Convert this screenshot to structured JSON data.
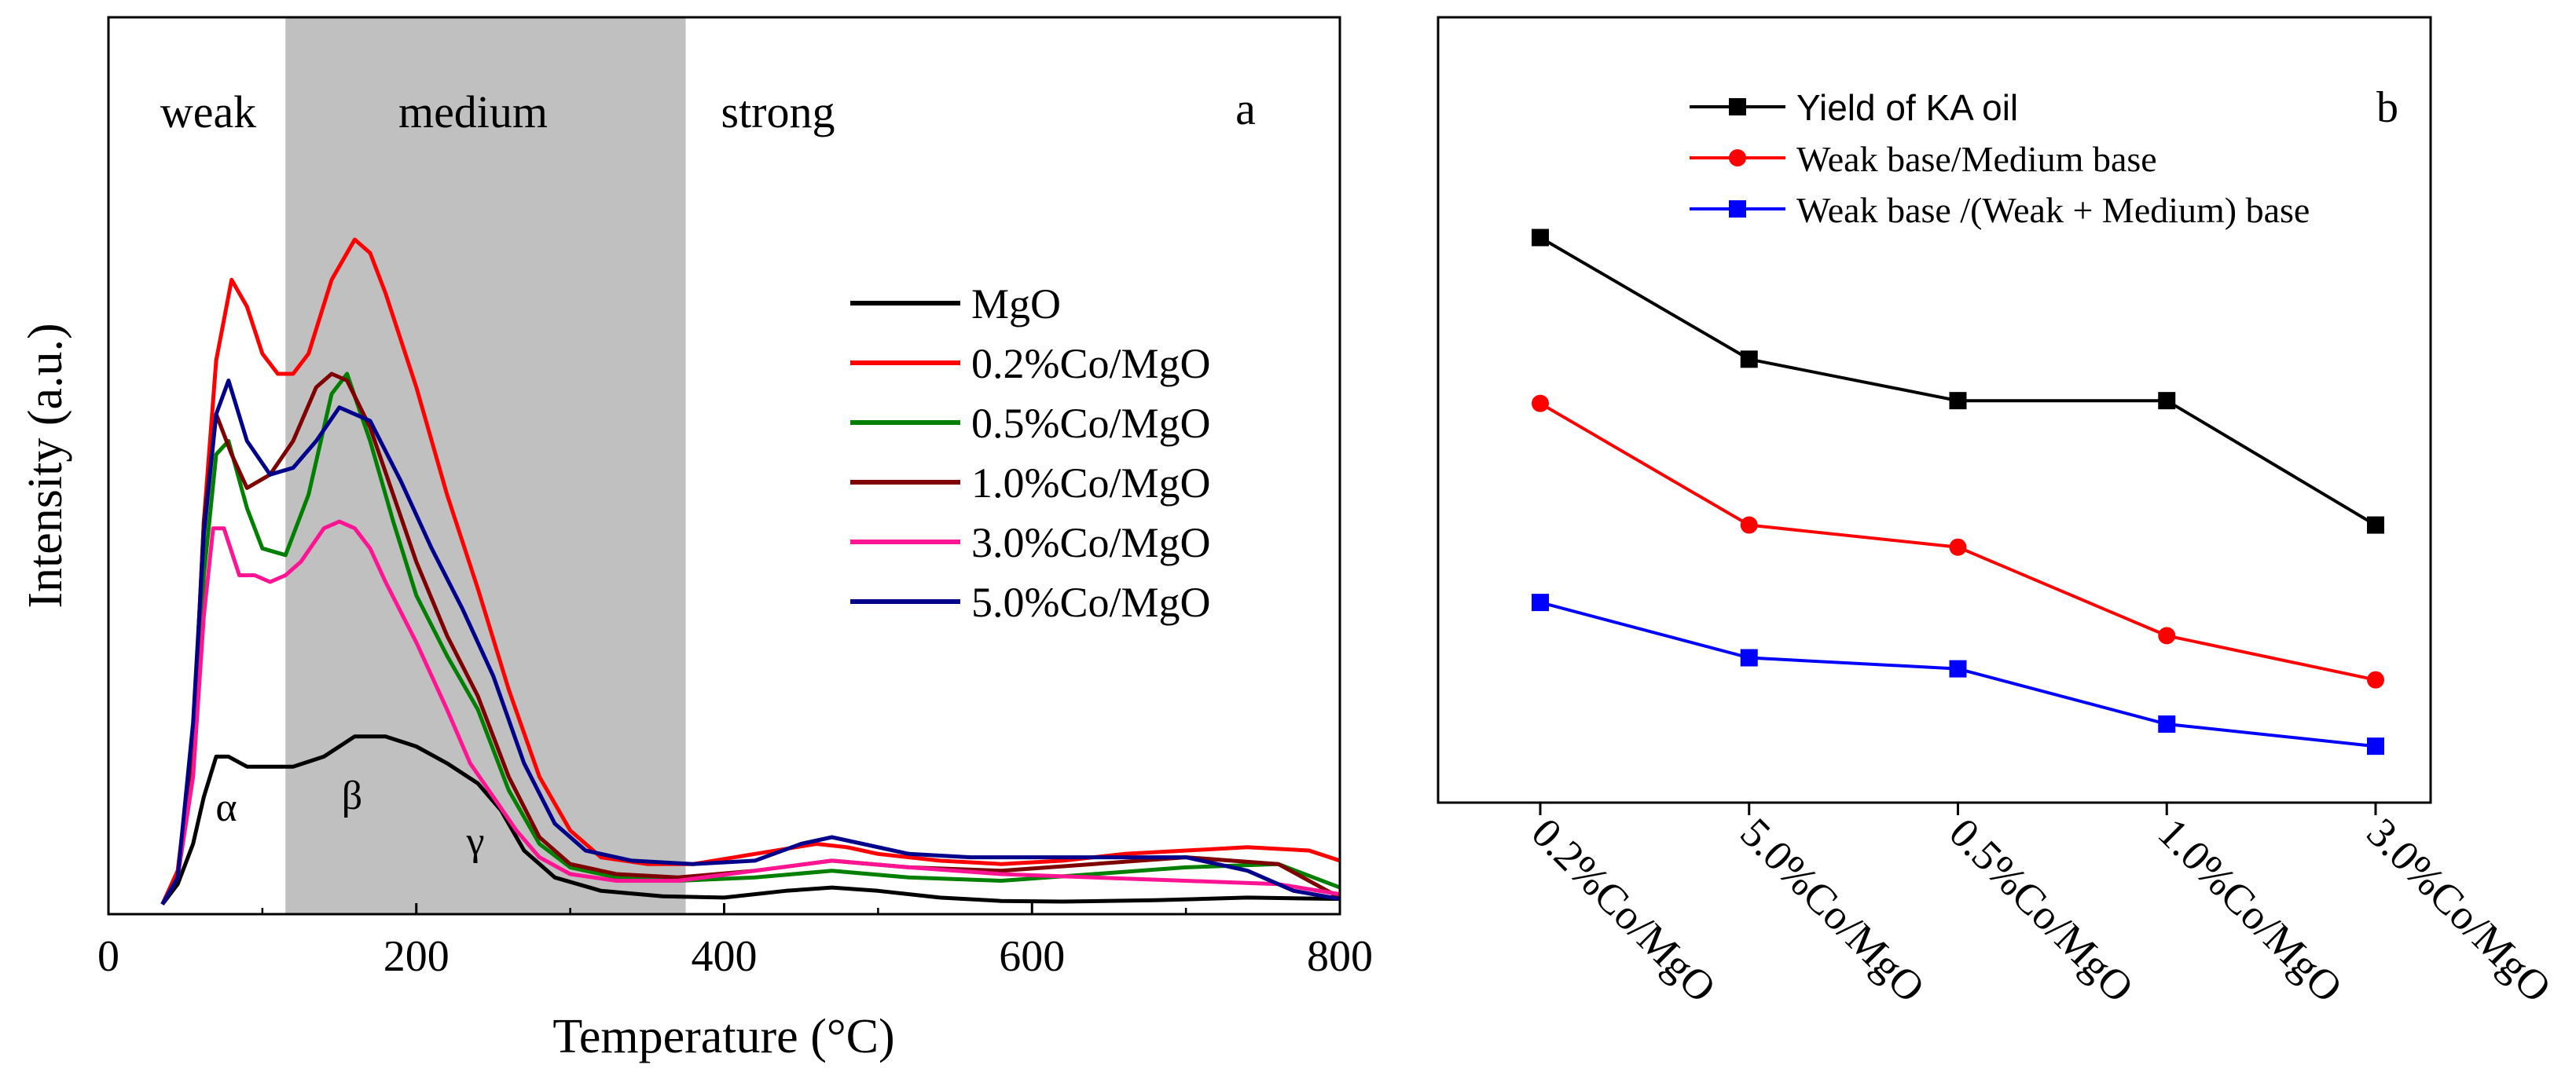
{
  "chart_data": [
    {
      "type": "line",
      "panel_label": "a",
      "title": "",
      "xlabel": "Temperature (°C)",
      "ylabel": "Intensity (a.u.)",
      "xlim": [
        0,
        800
      ],
      "ylim": [
        0,
        1.0
      ],
      "x_ticks": [
        "0",
        "200",
        "400",
        "600",
        "800"
      ],
      "region_labels": [
        "weak",
        "medium",
        "strong"
      ],
      "shaded_region": {
        "from": 115,
        "to": 375,
        "color": "#c0c0c0"
      },
      "peak_labels": [
        {
          "text": "α",
          "x": 78,
          "y": 0.14
        },
        {
          "text": "β",
          "x": 160,
          "y": 0.15
        },
        {
          "text": "γ",
          "x": 240,
          "y": 0.07
        }
      ],
      "legend": {
        "position": "middle-right"
      },
      "series": [
        {
          "name": "MgO",
          "color": "#000000",
          "x": [
            35,
            45,
            55,
            62,
            70,
            78,
            90,
            105,
            120,
            140,
            160,
            180,
            200,
            220,
            240,
            255,
            270,
            290,
            320,
            360,
            400,
            440,
            470,
            500,
            540,
            580,
            620,
            680,
            740,
            800
          ],
          "y": [
            0.01,
            0.04,
            0.1,
            0.17,
            0.23,
            0.23,
            0.215,
            0.215,
            0.215,
            0.23,
            0.26,
            0.26,
            0.245,
            0.22,
            0.19,
            0.15,
            0.09,
            0.05,
            0.03,
            0.022,
            0.02,
            0.03,
            0.035,
            0.03,
            0.02,
            0.015,
            0.014,
            0.016,
            0.02,
            0.018
          ]
        },
        {
          "name": "0.2%Co/MgO",
          "color": "#ff0000",
          "x": [
            35,
            45,
            55,
            62,
            70,
            80,
            90,
            100,
            110,
            120,
            130,
            145,
            160,
            170,
            180,
            200,
            220,
            240,
            260,
            280,
            300,
            320,
            350,
            380,
            420,
            460,
            480,
            500,
            540,
            580,
            620,
            660,
            700,
            740,
            780,
            800
          ],
          "y": [
            0.01,
            0.06,
            0.25,
            0.58,
            0.82,
            0.94,
            0.9,
            0.83,
            0.8,
            0.8,
            0.83,
            0.94,
            1.0,
            0.98,
            0.92,
            0.78,
            0.62,
            0.48,
            0.33,
            0.2,
            0.12,
            0.08,
            0.07,
            0.07,
            0.085,
            0.1,
            0.095,
            0.085,
            0.075,
            0.07,
            0.075,
            0.085,
            0.09,
            0.095,
            0.09,
            0.075
          ]
        },
        {
          "name": "0.5%Co/MgO",
          "color": "#007f00",
          "x": [
            35,
            45,
            55,
            62,
            70,
            78,
            90,
            100,
            115,
            130,
            145,
            155,
            170,
            185,
            200,
            220,
            240,
            260,
            280,
            300,
            330,
            370,
            420,
            470,
            520,
            580,
            640,
            700,
            760,
            800
          ],
          "y": [
            0.01,
            0.05,
            0.22,
            0.5,
            0.68,
            0.7,
            0.6,
            0.54,
            0.53,
            0.62,
            0.77,
            0.8,
            0.7,
            0.58,
            0.47,
            0.38,
            0.3,
            0.18,
            0.1,
            0.065,
            0.05,
            0.045,
            0.05,
            0.06,
            0.05,
            0.045,
            0.055,
            0.065,
            0.07,
            0.035
          ]
        },
        {
          "name": "1.0%Co/MgO",
          "color": "#7f0000",
          "x": [
            35,
            45,
            55,
            62,
            70,
            80,
            90,
            105,
            120,
            135,
            145,
            155,
            170,
            185,
            200,
            220,
            240,
            260,
            280,
            300,
            330,
            370,
            420,
            470,
            520,
            580,
            640,
            700,
            760,
            800
          ],
          "y": [
            0.01,
            0.05,
            0.25,
            0.58,
            0.74,
            0.68,
            0.63,
            0.65,
            0.7,
            0.78,
            0.8,
            0.79,
            0.72,
            0.62,
            0.52,
            0.41,
            0.32,
            0.2,
            0.11,
            0.07,
            0.055,
            0.05,
            0.06,
            0.075,
            0.065,
            0.06,
            0.07,
            0.08,
            0.07,
            0.02
          ]
        },
        {
          "name": "3.0%Co/MgO",
          "color": "#ff1493",
          "x": [
            35,
            45,
            55,
            62,
            68,
            75,
            85,
            95,
            105,
            115,
            125,
            140,
            150,
            160,
            170,
            180,
            200,
            220,
            235,
            250,
            265,
            280,
            300,
            330,
            370,
            420,
            470,
            520,
            580,
            640,
            700,
            760,
            800
          ],
          "y": [
            0.01,
            0.05,
            0.2,
            0.44,
            0.57,
            0.57,
            0.5,
            0.5,
            0.49,
            0.5,
            0.52,
            0.57,
            0.58,
            0.57,
            0.54,
            0.49,
            0.4,
            0.3,
            0.22,
            0.17,
            0.12,
            0.08,
            0.055,
            0.045,
            0.045,
            0.06,
            0.075,
            0.065,
            0.055,
            0.05,
            0.045,
            0.04,
            0.025
          ]
        },
        {
          "name": "5.0%Co/MgO",
          "color": "#00008b",
          "x": [
            35,
            45,
            55,
            62,
            70,
            78,
            90,
            105,
            120,
            135,
            150,
            160,
            170,
            190,
            210,
            230,
            250,
            270,
            290,
            310,
            340,
            380,
            420,
            450,
            470,
            490,
            520,
            560,
            600,
            650,
            700,
            740,
            770,
            800
          ],
          "y": [
            0.01,
            0.05,
            0.28,
            0.56,
            0.74,
            0.79,
            0.7,
            0.65,
            0.66,
            0.7,
            0.75,
            0.74,
            0.73,
            0.64,
            0.54,
            0.45,
            0.35,
            0.22,
            0.13,
            0.09,
            0.075,
            0.07,
            0.075,
            0.1,
            0.11,
            0.1,
            0.085,
            0.08,
            0.08,
            0.08,
            0.08,
            0.06,
            0.03,
            0.018
          ]
        }
      ]
    },
    {
      "type": "line",
      "panel_label": "b",
      "title": "",
      "xlabel": "",
      "ylabel": "",
      "categories": [
        "0.2%Co/MgO",
        "5.0%Co/MgO",
        "0.5%Co/MgO",
        "1.0%Co/MgO",
        "3.0%Co/MgO"
      ],
      "ylim": [
        0,
        100
      ],
      "legend": {
        "position": "top-center"
      },
      "series": [
        {
          "name": "Yield of KA oil",
          "color": "#000000",
          "marker": "square",
          "values": [
            88,
            66,
            58.5,
            58.5,
            36
          ]
        },
        {
          "name": "Weak base/Medium base",
          "color": "#ff0000",
          "marker": "circle",
          "values": [
            58,
            36,
            32,
            16,
            8
          ]
        },
        {
          "name": "Weak base /(Weak + Medium) base",
          "color": "#0000ff",
          "marker": "square",
          "values": [
            22,
            12,
            10,
            0,
            -4
          ]
        }
      ]
    }
  ]
}
